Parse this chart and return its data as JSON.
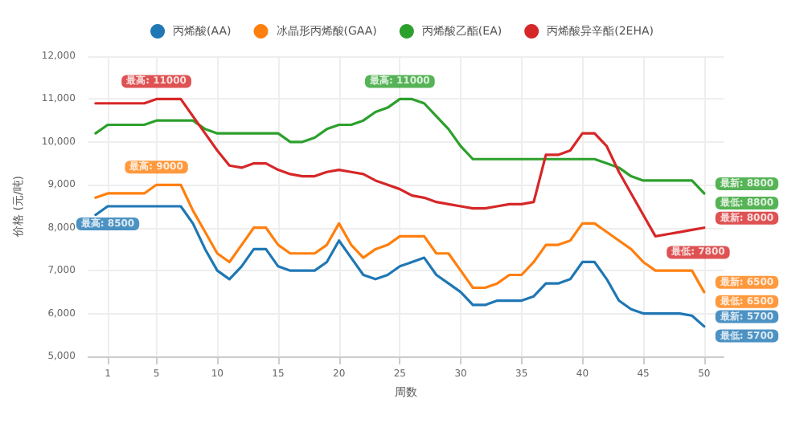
{
  "chart_data": {
    "type": "line",
    "xlabel": "周数",
    "ylabel": "价格 (元/吨)",
    "x": [
      0,
      1,
      2,
      3,
      4,
      5,
      6,
      7,
      8,
      9,
      10,
      11,
      12,
      13,
      14,
      15,
      16,
      17,
      18,
      19,
      20,
      21,
      22,
      23,
      24,
      25,
      26,
      27,
      28,
      29,
      30,
      31,
      32,
      33,
      34,
      35,
      36,
      37,
      38,
      39,
      40,
      41,
      42,
      43,
      44,
      45,
      46,
      47,
      48,
      49,
      50
    ],
    "series": [
      {
        "name": "丙烯酸(AA)",
        "color": "#1f77b4",
        "values": [
          8300,
          8500,
          8500,
          8500,
          8500,
          8500,
          8500,
          8500,
          8100,
          7500,
          7000,
          6800,
          7100,
          7500,
          7500,
          7100,
          7000,
          7000,
          7000,
          7200,
          7700,
          7300,
          6900,
          6800,
          6900,
          7100,
          7200,
          7300,
          6900,
          6700,
          6500,
          6200,
          6200,
          6300,
          6300,
          6300,
          6400,
          6700,
          6700,
          6800,
          7200,
          7200,
          6800,
          6300,
          6100,
          6000,
          6000,
          6000,
          6000,
          5950,
          5700
        ]
      },
      {
        "name": "冰晶形丙烯酸(GAA)",
        "color": "#ff7f0e",
        "values": [
          8700,
          8800,
          8800,
          8800,
          8800,
          9000,
          9000,
          9000,
          8400,
          7900,
          7400,
          7200,
          7600,
          8000,
          8000,
          7600,
          7400,
          7400,
          7400,
          7600,
          8100,
          7600,
          7300,
          7500,
          7600,
          7800,
          7800,
          7800,
          7400,
          7400,
          7000,
          6600,
          6600,
          6700,
          6900,
          6900,
          7200,
          7600,
          7600,
          7700,
          8100,
          8100,
          7900,
          7700,
          7500,
          7200,
          7000,
          7000,
          7000,
          7000,
          6500
        ]
      },
      {
        "name": "丙烯酸乙酯(EA)",
        "color": "#2ca02c",
        "values": [
          10200,
          10400,
          10400,
          10400,
          10400,
          10500,
          10500,
          10500,
          10500,
          10300,
          10200,
          10200,
          10200,
          10200,
          10200,
          10200,
          10000,
          10000,
          10100,
          10300,
          10400,
          10400,
          10500,
          10700,
          10800,
          11000,
          11000,
          10900,
          10600,
          10300,
          9900,
          9600,
          9600,
          9600,
          9600,
          9600,
          9600,
          9600,
          9600,
          9600,
          9600,
          9600,
          9500,
          9400,
          9200,
          9100,
          9100,
          9100,
          9100,
          9100,
          8800
        ]
      },
      {
        "name": "丙烯酸异辛酯(2EHA)",
        "color": "#d62728",
        "values": [
          10900,
          10900,
          10900,
          10900,
          10900,
          11000,
          11000,
          11000,
          10600,
          10200,
          9800,
          9450,
          9400,
          9500,
          9500,
          9350,
          9250,
          9200,
          9200,
          9300,
          9350,
          9300,
          9250,
          9100,
          9000,
          8900,
          8750,
          8700,
          8600,
          8550,
          8500,
          8450,
          8450,
          8500,
          8550,
          8550,
          8600,
          9700,
          9700,
          9800,
          10200,
          10200,
          9900,
          9300,
          8800,
          8300,
          7800,
          7850,
          7900,
          7950,
          8000
        ]
      }
    ],
    "annotations": [
      {
        "text": "最高: 8500",
        "x": 1,
        "y": 8500
      },
      {
        "text": "最新: 5700",
        "x": 50,
        "y": 5700
      },
      {
        "text": "最低: 5700",
        "x": 50,
        "y": 5700
      },
      {
        "text": "最高: 9000",
        "x": 5,
        "y": 9000
      },
      {
        "text": "最新: 6500",
        "x": 50,
        "y": 6500
      },
      {
        "text": "最低: 6500",
        "x": 50,
        "y": 6500
      },
      {
        "text": "最高: 11000",
        "x": 25,
        "y": 11000
      },
      {
        "text": "最新: 8800",
        "x": 50,
        "y": 8800
      },
      {
        "text": "最低: 8800",
        "x": 50,
        "y": 8800
      },
      {
        "text": "最高: 11000",
        "x": 5,
        "y": 11000
      },
      {
        "text": "最新: 8000",
        "x": 50,
        "y": 8000
      },
      {
        "text": "最低: 7800",
        "x": 46,
        "y": 7800
      }
    ],
    "xlim": [
      -0.6,
      51.6
    ],
    "xticks": [
      1,
      5,
      10,
      15,
      20,
      25,
      30,
      35,
      40,
      45,
      50
    ],
    "ylim": [
      5000,
      12000
    ],
    "yticks": [
      {
        "value": 5000,
        "label": "5,000"
      },
      {
        "value": 6000,
        "label": "6,000"
      },
      {
        "value": 7000,
        "label": "7,000"
      },
      {
        "value": 8000,
        "label": "8,000"
      },
      {
        "value": 9000,
        "label": "9,000"
      },
      {
        "value": 10000,
        "label": "10,000"
      },
      {
        "value": 11000,
        "label": "11,000"
      },
      {
        "value": 12000,
        "label": "12,000"
      }
    ],
    "grid": true,
    "legend": "top",
    "marker": "none",
    "line_style": "solid"
  }
}
